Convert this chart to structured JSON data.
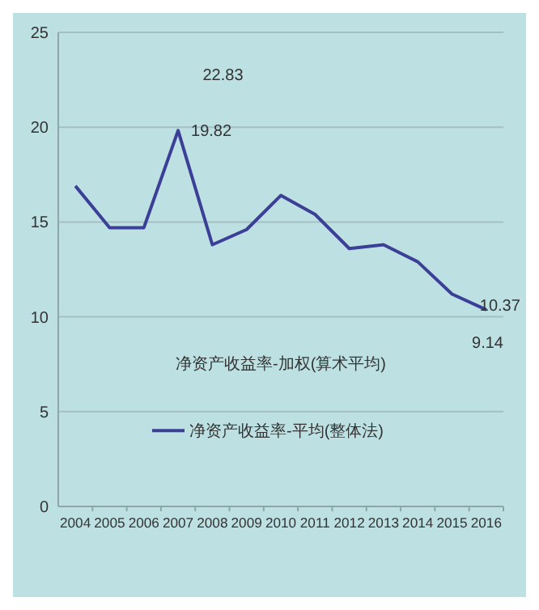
{
  "chart_data": {
    "type": "line",
    "categories": [
      "2004",
      "2005",
      "2006",
      "2007",
      "2008",
      "2009",
      "2010",
      "2011",
      "2012",
      "2013",
      "2014",
      "2015",
      "2016"
    ],
    "series": [
      {
        "name": "净资产收益率-平均(整体法)",
        "color": "#3b3f96",
        "values": [
          16.9,
          14.7,
          14.7,
          19.82,
          13.8,
          14.6,
          16.4,
          15.4,
          13.6,
          13.8,
          12.9,
          11.2,
          10.37
        ]
      }
    ],
    "ylim": [
      0,
      25
    ],
    "yticks": [
      0,
      5,
      10,
      15,
      20,
      25
    ],
    "grid": "y",
    "legend": "bottom left",
    "annotations": [
      "22.83",
      {
        "text": "19.82",
        "x": "2007",
        "y": 19.82
      },
      {
        "text": "10.37",
        "x": "2016",
        "y": 10.37
      },
      "9.14",
      "净资产收益率-加权(算术平均)"
    ]
  }
}
